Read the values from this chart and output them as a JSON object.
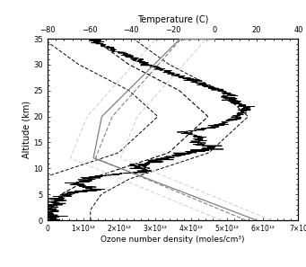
{
  "title_top": "Temperature (C)",
  "xlabel": "Ozone number density (moles/cm³)",
  "ylabel": "Altitude (km)",
  "xlim_ozone": [
    0,
    7000000000000.0
  ],
  "xlim_temp": [
    -80,
    40
  ],
  "ylim": [
    0,
    35
  ],
  "yticks": [
    0,
    5,
    10,
    15,
    20,
    25,
    30,
    35
  ],
  "xticks_ozone": [
    0,
    1000000000000.0,
    2000000000000.0,
    3000000000000.0,
    4000000000000.0,
    5000000000000.0,
    6000000000000.0
  ],
  "xtick_labels_ozone": [
    "0",
    "1×10¹²",
    "2×10¹²",
    "3×10¹²",
    "4×10¹²",
    "5×10¹²",
    "6×10¹²"
  ],
  "xtick_last_ozone": 7000000000000.0,
  "xtick_last_label": "7×10",
  "xticks_temp": [
    -80,
    -60,
    -40,
    -20,
    0,
    20,
    40
  ],
  "background_color": "#ffffff"
}
